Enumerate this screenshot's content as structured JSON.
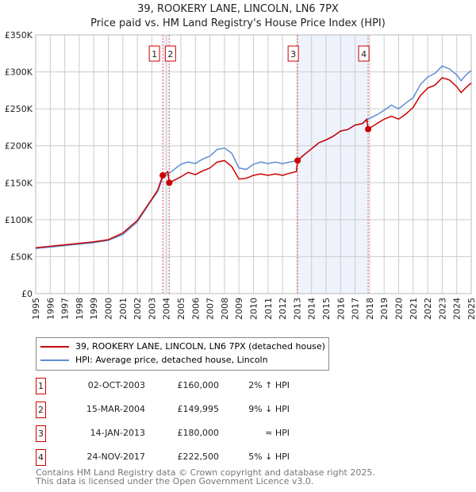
{
  "chart_data": {
    "type": "line",
    "title": "39, ROOKERY LANE, LINCOLN, LN6 7PX",
    "subtitle": "Price paid vs. HM Land Registry's House Price Index (HPI)",
    "xlim": [
      1995,
      2025
    ],
    "ylim": [
      0,
      350000
    ],
    "x_ticks": [
      "1995",
      "1996",
      "1997",
      "1998",
      "1999",
      "2000",
      "2001",
      "2002",
      "2003",
      "2004",
      "2005",
      "2006",
      "2007",
      "2008",
      "2009",
      "2010",
      "2011",
      "2012",
      "2013",
      "2014",
      "2015",
      "2016",
      "2017",
      "2018",
      "2019",
      "2020",
      "2021",
      "2022",
      "2023",
      "2024",
      "2025"
    ],
    "y_ticks": [
      {
        "v": 0,
        "label": "£0"
      },
      {
        "v": 50000,
        "label": "£50K"
      },
      {
        "v": 100000,
        "label": "£100K"
      },
      {
        "v": 150000,
        "label": "£150K"
      },
      {
        "v": 200000,
        "label": "£200K"
      },
      {
        "v": 250000,
        "label": "£250K"
      },
      {
        "v": 300000,
        "label": "£300K"
      },
      {
        "v": 350000,
        "label": "£350K"
      }
    ],
    "grid": true,
    "series": [
      {
        "name": "39, ROOKERY LANE, LINCOLN, LN6 7PX (detached house)",
        "color": "#cc0000",
        "x": [
          1995,
          1996,
          1997,
          1998,
          1999,
          2000,
          2001,
          2002,
          2003,
          2003.4,
          2003.75,
          2004.1,
          2004.2,
          2005,
          2005.5,
          2006,
          2006.5,
          2007,
          2007.5,
          2008,
          2008.5,
          2009,
          2009.5,
          2010,
          2010.5,
          2011,
          2011.5,
          2012,
          2012.5,
          2012.95,
          2013.04,
          2013.5,
          2014,
          2014.5,
          2015,
          2015.5,
          2016,
          2016.5,
          2017,
          2017.5,
          2017.8,
          2017.9,
          2018.5,
          2019,
          2019.5,
          2020,
          2020.5,
          2021,
          2021.5,
          2022,
          2022.5,
          2023,
          2023.5,
          2024,
          2024.3,
          2024.6,
          2025
        ],
        "y": [
          62000,
          64000,
          66000,
          68000,
          70000,
          73000,
          82000,
          99000,
          128000,
          140000,
          160000,
          165000,
          149995,
          158000,
          164000,
          161000,
          166000,
          170000,
          178000,
          180000,
          172000,
          155000,
          156000,
          160000,
          162000,
          160000,
          162000,
          160000,
          163000,
          165000,
          180000,
          188000,
          196000,
          204000,
          208000,
          213000,
          220000,
          222000,
          228000,
          230000,
          236000,
          222500,
          230000,
          236000,
          240000,
          236000,
          243000,
          252000,
          268000,
          278000,
          282000,
          292000,
          289000,
          280000,
          272000,
          278000,
          285000
        ]
      },
      {
        "name": "HPI: Average price, detached house, Lincoln",
        "color": "#5b8fd4",
        "x": [
          1995,
          1996,
          1997,
          1998,
          1999,
          2000,
          2001,
          2002,
          2003,
          2003.4,
          2003.75,
          2004.2,
          2005,
          2005.5,
          2006,
          2006.5,
          2007,
          2007.5,
          2008,
          2008.5,
          2009,
          2009.5,
          2010,
          2010.5,
          2011,
          2011.5,
          2012,
          2012.5,
          2013,
          2013.5,
          2014,
          2014.5,
          2015,
          2015.5,
          2016,
          2016.5,
          2017,
          2017.5,
          2017.9,
          2018.5,
          2019,
          2019.5,
          2020,
          2020.5,
          2021,
          2021.5,
          2022,
          2022.5,
          2023,
          2023.5,
          2024,
          2024.3,
          2024.6,
          2025
        ],
        "y": [
          61000,
          63000,
          65000,
          67000,
          69000,
          72000,
          80000,
          97000,
          127000,
          138000,
          157000,
          163000,
          175000,
          178000,
          176000,
          182000,
          186000,
          195000,
          197000,
          190000,
          170000,
          168000,
          175000,
          178000,
          176000,
          178000,
          176000,
          178000,
          180000,
          188000,
          196000,
          204000,
          208000,
          213000,
          220000,
          222000,
          228000,
          230000,
          236000,
          242000,
          248000,
          255000,
          250000,
          258000,
          265000,
          283000,
          293000,
          298000,
          308000,
          304000,
          296000,
          288000,
          295000,
          302000
        ]
      }
    ],
    "events": [
      {
        "n": "1",
        "x": 2003.75,
        "date": "02-OCT-2003",
        "price": "£160,000",
        "price_value": 160000,
        "rel": "2% ↑ HPI"
      },
      {
        "n": "2",
        "x": 2004.2,
        "date": "15-MAR-2004",
        "price": "£149,995",
        "price_value": 149995,
        "rel": "9% ↓ HPI"
      },
      {
        "n": "3",
        "x": 2013.04,
        "date": "14-JAN-2013",
        "price": "£180,000",
        "price_value": 180000,
        "rel": "≈ HPI"
      },
      {
        "n": "4",
        "x": 2017.9,
        "date": "24-NOV-2017",
        "price": "£222,500",
        "price_value": 222500,
        "rel": "5% ↓ HPI"
      }
    ],
    "shaded": [
      [
        2003.75,
        2004.2
      ],
      [
        2013.04,
        2017.9
      ]
    ]
  },
  "footer": {
    "line1": "Contains HM Land Registry data © Crown copyright and database right 2025.",
    "line2": "This data is licensed under the Open Government Licence v3.0."
  }
}
